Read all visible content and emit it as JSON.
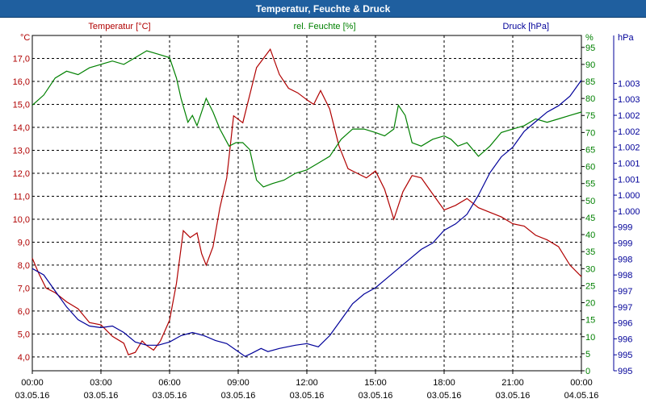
{
  "window": {
    "title": "Temperatur, Feuchte & Druck"
  },
  "chart_data": {
    "type": "line",
    "title": "Temperatur, Feuchte & Druck",
    "grid": true,
    "x_ticks": [
      {
        "t": 0,
        "time": "00:00",
        "date": "03.05.16"
      },
      {
        "t": 3,
        "time": "03:00",
        "date": "03.05.16"
      },
      {
        "t": 6,
        "time": "06:00",
        "date": "03.05.16"
      },
      {
        "t": 9,
        "time": "09:00",
        "date": "03.05.16"
      },
      {
        "t": 12,
        "time": "12:00",
        "date": "03.05.16"
      },
      {
        "t": 15,
        "time": "15:00",
        "date": "03.05.16"
      },
      {
        "t": 18,
        "time": "18:00",
        "date": "03.05.16"
      },
      {
        "t": 21,
        "time": "21:00",
        "date": "03.05.16"
      },
      {
        "t": 24,
        "time": "00:00",
        "date": "04.05.16"
      }
    ],
    "xlim": [
      0,
      24
    ],
    "axes": {
      "temperature": {
        "label": "Temperatur [°C]",
        "unit": "°C",
        "color": "#b00000",
        "range": [
          3.4,
          18.0
        ],
        "ticks": [
          {
            "v": 4.0,
            "label": "4,0"
          },
          {
            "v": 5.0,
            "label": "5,0"
          },
          {
            "v": 6.0,
            "label": "6,0"
          },
          {
            "v": 7.0,
            "label": "7,0"
          },
          {
            "v": 8.0,
            "label": "8,0"
          },
          {
            "v": 9.0,
            "label": "9,0"
          },
          {
            "v": 10.0,
            "label": "10,0"
          },
          {
            "v": 11.0,
            "label": "11,0"
          },
          {
            "v": 12.0,
            "label": "12,0"
          },
          {
            "v": 13.0,
            "label": "13,0"
          },
          {
            "v": 14.0,
            "label": "14,0"
          },
          {
            "v": 15.0,
            "label": "15,0"
          },
          {
            "v": 16.0,
            "label": "16,0"
          },
          {
            "v": 17.0,
            "label": "17,0"
          }
        ]
      },
      "humidity": {
        "label": "rel. Feuchte [%]",
        "unit": "%",
        "color": "#008000",
        "range": [
          0,
          98.5
        ],
        "ticks": [
          {
            "v": 0,
            "label": "0"
          },
          {
            "v": 5,
            "label": "5"
          },
          {
            "v": 10,
            "label": "10"
          },
          {
            "v": 15,
            "label": "15"
          },
          {
            "v": 20,
            "label": "20"
          },
          {
            "v": 25,
            "label": "25"
          },
          {
            "v": 30,
            "label": "30"
          },
          {
            "v": 35,
            "label": "35"
          },
          {
            "v": 40,
            "label": "40"
          },
          {
            "v": 45,
            "label": "45"
          },
          {
            "v": 50,
            "label": "50"
          },
          {
            "v": 55,
            "label": "55"
          },
          {
            "v": 60,
            "label": "60"
          },
          {
            "v": 65,
            "label": "65"
          },
          {
            "v": 70,
            "label": "70"
          },
          {
            "v": 75,
            "label": "75"
          },
          {
            "v": 80,
            "label": "80"
          },
          {
            "v": 85,
            "label": "85"
          },
          {
            "v": 90,
            "label": "90"
          },
          {
            "v": 95,
            "label": "95"
          }
        ]
      },
      "pressure": {
        "label": "Druck [hPa]",
        "unit": "hPa",
        "color": "#000099",
        "range": [
          0,
          10.5
        ],
        "ticks": [
          {
            "v": 0.0,
            "label": "995"
          },
          {
            "v": 0.5,
            "label": "995"
          },
          {
            "v": 1.0,
            "label": "996"
          },
          {
            "v": 1.5,
            "label": "996"
          },
          {
            "v": 2.0,
            "label": "997"
          },
          {
            "v": 2.5,
            "label": "997"
          },
          {
            "v": 3.0,
            "label": "998"
          },
          {
            "v": 3.5,
            "label": "998"
          },
          {
            "v": 4.0,
            "label": "999"
          },
          {
            "v": 4.5,
            "label": "999"
          },
          {
            "v": 5.0,
            "label": "1.000"
          },
          {
            "v": 5.5,
            "label": "1.000"
          },
          {
            "v": 6.0,
            "label": "1.001"
          },
          {
            "v": 6.5,
            "label": "1.001"
          },
          {
            "v": 7.0,
            "label": "1.002"
          },
          {
            "v": 7.5,
            "label": "1.002"
          },
          {
            "v": 8.0,
            "label": "1.002"
          },
          {
            "v": 8.5,
            "label": "1.003"
          },
          {
            "v": 9.0,
            "label": "1.003"
          }
        ]
      }
    },
    "series": [
      {
        "name": "Temperatur [°C]",
        "axis": "temperature",
        "color": "#b00000",
        "points": [
          [
            0,
            8.3
          ],
          [
            0.3,
            7.6
          ],
          [
            0.6,
            7.0
          ],
          [
            1.0,
            6.8
          ],
          [
            1.5,
            6.4
          ],
          [
            2.0,
            6.1
          ],
          [
            2.5,
            5.5
          ],
          [
            3.0,
            5.4
          ],
          [
            3.5,
            4.9
          ],
          [
            4.0,
            4.6
          ],
          [
            4.2,
            4.1
          ],
          [
            4.5,
            4.2
          ],
          [
            4.8,
            4.7
          ],
          [
            5.0,
            4.5
          ],
          [
            5.3,
            4.3
          ],
          [
            5.6,
            4.7
          ],
          [
            6.0,
            5.6
          ],
          [
            6.3,
            7.2
          ],
          [
            6.6,
            9.5
          ],
          [
            6.9,
            9.2
          ],
          [
            7.2,
            9.4
          ],
          [
            7.4,
            8.5
          ],
          [
            7.6,
            8.0
          ],
          [
            7.9,
            8.8
          ],
          [
            8.2,
            10.5
          ],
          [
            8.5,
            11.8
          ],
          [
            8.8,
            14.5
          ],
          [
            9.2,
            14.2
          ],
          [
            9.5,
            15.4
          ],
          [
            9.8,
            16.6
          ],
          [
            10.1,
            17.0
          ],
          [
            10.4,
            17.4
          ],
          [
            10.8,
            16.3
          ],
          [
            11.2,
            15.7
          ],
          [
            11.6,
            15.5
          ],
          [
            12.0,
            15.2
          ],
          [
            12.3,
            15.0
          ],
          [
            12.6,
            15.6
          ],
          [
            13.0,
            14.8
          ],
          [
            13.4,
            13.2
          ],
          [
            13.8,
            12.2
          ],
          [
            14.2,
            12.0
          ],
          [
            14.6,
            11.8
          ],
          [
            15.0,
            12.1
          ],
          [
            15.4,
            11.3
          ],
          [
            15.8,
            10.0
          ],
          [
            16.2,
            11.2
          ],
          [
            16.6,
            11.9
          ],
          [
            17.0,
            11.8
          ],
          [
            17.5,
            11.1
          ],
          [
            18.0,
            10.4
          ],
          [
            18.5,
            10.6
          ],
          [
            19.0,
            10.9
          ],
          [
            19.5,
            10.5
          ],
          [
            20.0,
            10.3
          ],
          [
            20.5,
            10.1
          ],
          [
            21.0,
            9.8
          ],
          [
            21.5,
            9.7
          ],
          [
            22.0,
            9.3
          ],
          [
            22.5,
            9.1
          ],
          [
            23.0,
            8.8
          ],
          [
            23.5,
            8.0
          ],
          [
            24.0,
            7.5
          ]
        ]
      },
      {
        "name": "rel. Feuchte [%]",
        "axis": "humidity",
        "color": "#008000",
        "points": [
          [
            0,
            78
          ],
          [
            0.5,
            81
          ],
          [
            1.0,
            86
          ],
          [
            1.5,
            88
          ],
          [
            2.0,
            87
          ],
          [
            2.5,
            89
          ],
          [
            3.0,
            90
          ],
          [
            3.5,
            91
          ],
          [
            4.0,
            90
          ],
          [
            4.5,
            92
          ],
          [
            5.0,
            94
          ],
          [
            5.5,
            93
          ],
          [
            6.0,
            92
          ],
          [
            6.3,
            86
          ],
          [
            6.5,
            80
          ],
          [
            6.8,
            73
          ],
          [
            7.0,
            75
          ],
          [
            7.2,
            72
          ],
          [
            7.6,
            80
          ],
          [
            7.9,
            76
          ],
          [
            8.2,
            71
          ],
          [
            8.6,
            66
          ],
          [
            8.9,
            67
          ],
          [
            9.2,
            67
          ],
          [
            9.5,
            65
          ],
          [
            9.8,
            56
          ],
          [
            10.1,
            54
          ],
          [
            10.5,
            55
          ],
          [
            11.0,
            56
          ],
          [
            11.5,
            58
          ],
          [
            12.0,
            59
          ],
          [
            12.5,
            61
          ],
          [
            13.0,
            63
          ],
          [
            13.5,
            68
          ],
          [
            14.0,
            71
          ],
          [
            14.5,
            71
          ],
          [
            15.0,
            70
          ],
          [
            15.4,
            69
          ],
          [
            15.8,
            71
          ],
          [
            16.0,
            78
          ],
          [
            16.3,
            75
          ],
          [
            16.6,
            67
          ],
          [
            17.0,
            66
          ],
          [
            17.5,
            68
          ],
          [
            18.0,
            69
          ],
          [
            18.3,
            68
          ],
          [
            18.6,
            66
          ],
          [
            19.0,
            67
          ],
          [
            19.5,
            63
          ],
          [
            20.0,
            66
          ],
          [
            20.5,
            70
          ],
          [
            21.0,
            71
          ],
          [
            21.5,
            72
          ],
          [
            22.0,
            74
          ],
          [
            22.5,
            73
          ],
          [
            23.0,
            74
          ],
          [
            23.5,
            75
          ],
          [
            24.0,
            76
          ]
        ]
      },
      {
        "name": "Druck [hPa]",
        "axis": "pressure",
        "color": "#000099",
        "points": [
          [
            0,
            3.2
          ],
          [
            0.5,
            3.0
          ],
          [
            1.0,
            2.5
          ],
          [
            1.5,
            2.0
          ],
          [
            2.0,
            1.6
          ],
          [
            2.5,
            1.4
          ],
          [
            3.0,
            1.35
          ],
          [
            3.5,
            1.4
          ],
          [
            4.0,
            1.2
          ],
          [
            4.5,
            0.9
          ],
          [
            5.0,
            0.8
          ],
          [
            5.5,
            0.8
          ],
          [
            6.0,
            0.9
          ],
          [
            6.5,
            1.1
          ],
          [
            7.0,
            1.2
          ],
          [
            7.5,
            1.1
          ],
          [
            8.0,
            0.95
          ],
          [
            8.5,
            0.85
          ],
          [
            9.0,
            0.6
          ],
          [
            9.3,
            0.45
          ],
          [
            9.6,
            0.55
          ],
          [
            10.0,
            0.7
          ],
          [
            10.3,
            0.6
          ],
          [
            10.8,
            0.7
          ],
          [
            11.5,
            0.8
          ],
          [
            12.0,
            0.85
          ],
          [
            12.5,
            0.75
          ],
          [
            13.0,
            1.1
          ],
          [
            13.5,
            1.6
          ],
          [
            14.0,
            2.1
          ],
          [
            14.5,
            2.4
          ],
          [
            15.0,
            2.6
          ],
          [
            15.5,
            2.9
          ],
          [
            16.0,
            3.2
          ],
          [
            16.5,
            3.5
          ],
          [
            17.0,
            3.8
          ],
          [
            17.5,
            4.0
          ],
          [
            18.0,
            4.4
          ],
          [
            18.5,
            4.6
          ],
          [
            19.0,
            4.9
          ],
          [
            19.5,
            5.5
          ],
          [
            20.0,
            6.2
          ],
          [
            20.5,
            6.7
          ],
          [
            21.0,
            7.0
          ],
          [
            21.5,
            7.5
          ],
          [
            22.0,
            7.8
          ],
          [
            22.5,
            8.1
          ],
          [
            23.0,
            8.3
          ],
          [
            23.5,
            8.6
          ],
          [
            24.0,
            9.1
          ]
        ]
      }
    ]
  }
}
